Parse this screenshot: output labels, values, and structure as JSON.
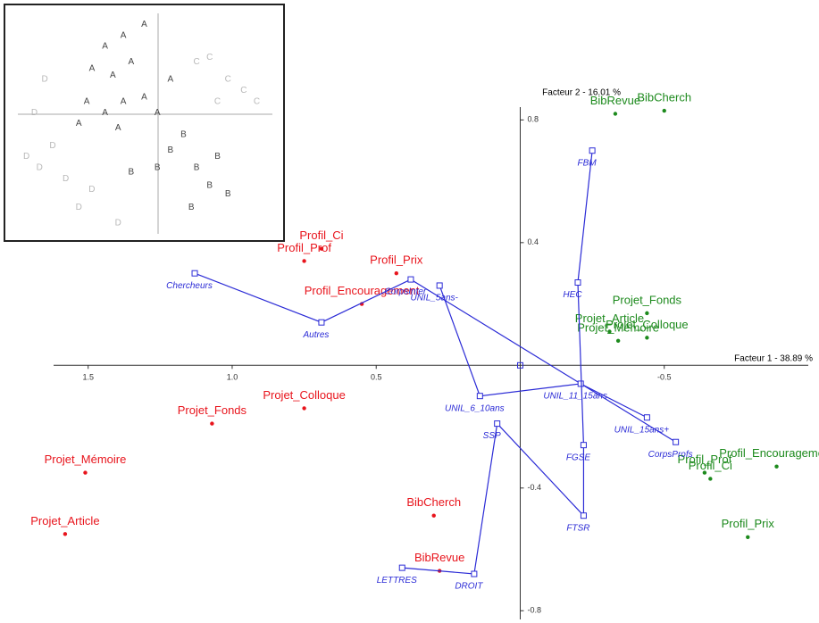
{
  "chart_data": [
    {
      "type": "scatter",
      "xlabel": "Facteur 1  -  38.89 %",
      "ylabel": "Facteur 2  -  16.01 %",
      "xlim": [
        1.62,
        -1.0
      ],
      "ylim": [
        -0.84,
        0.9
      ],
      "xticks": [
        1.5,
        {
          "value": 1,
          "label": "1.0"
        },
        0.5,
        -0.5
      ],
      "yticks": [
        0.8,
        0.4,
        -0.4,
        -0.8
      ],
      "series": [
        {
          "color": "#e8141c",
          "marker": "dot",
          "line": false,
          "labels": [
            "Profil_Ci",
            "Profil_Prof",
            "Profil_Prix",
            "Profil_Encouragement",
            "Projet_Colloque",
            "Projet_Fonds",
            "Projet_Mémoire",
            "Projet_Article",
            "BibCherch",
            "BibRevue"
          ],
          "x": [
            0.69,
            0.75,
            0.43,
            0.55,
            0.75,
            1.07,
            1.51,
            1.58,
            0.3,
            0.28
          ],
          "values": [
            0.38,
            0.34,
            0.3,
            0.2,
            -0.14,
            -0.19,
            -0.35,
            -0.55,
            -0.49,
            -0.67
          ]
        },
        {
          "color": "#1d8a1d",
          "marker": "dot",
          "line": false,
          "labels": [
            "BibRevue",
            "BibCherch",
            "Projet_Article",
            "Projet_Mémoire",
            "Projet_Fonds",
            "Projet_Colloque",
            "Profil_Encouragement",
            "Profil_Prof",
            "Profil_Ci",
            "Profil_Prix"
          ],
          "x": [
            -0.33,
            -0.5,
            -0.31,
            -0.34,
            -0.44,
            -0.44,
            -0.89,
            -0.64,
            -0.66,
            -0.79
          ],
          "values": [
            0.82,
            0.83,
            0.11,
            0.08,
            0.17,
            0.09,
            -0.33,
            -0.35,
            -0.37,
            -0.56
          ]
        },
        {
          "color": "#2b2bd6",
          "marker": "square",
          "line": true,
          "labels": [
            "Chercheurs",
            "Autres",
            "CorpsInter",
            "CorpsProfs"
          ],
          "x": [
            1.13,
            0.69,
            0.38,
            -0.54
          ],
          "values": [
            0.3,
            0.14,
            0.28,
            -0.25
          ]
        },
        {
          "color": "#2b2bd6",
          "marker": "square",
          "line": true,
          "labels": [
            "UNIL_5ans-",
            "UNIL_6_10ans",
            "UNIL_11_15ans",
            "UNIL_15ans+"
          ],
          "x": [
            0.28,
            0.14,
            -0.21,
            -0.44
          ],
          "values": [
            0.26,
            -0.1,
            -0.06,
            -0.17
          ]
        },
        {
          "color": "#2b2bd6",
          "marker": "square",
          "line": true,
          "labels": [
            "LETTRES",
            "DROIT",
            "SSP",
            "FTSR",
            "FGSE",
            "HEC",
            "FBM"
          ],
          "x": [
            0.41,
            0.16,
            0.08,
            -0.22,
            -0.22,
            -0.2,
            -0.25
          ],
          "values": [
            -0.66,
            -0.68,
            -0.19,
            -0.49,
            -0.26,
            0.27,
            0.7
          ]
        }
      ]
    },
    {
      "type": "scatter",
      "xlim": [
        0,
        1
      ],
      "ylim": [
        0,
        1
      ],
      "series": [
        {
          "color": "#444444",
          "labels": [
            "A",
            "A",
            "A",
            "A",
            "A",
            "A",
            "A",
            "A",
            "A",
            "A",
            "A",
            "A",
            "A",
            "A",
            "B",
            "B",
            "B",
            "B",
            "B",
            "B",
            "B",
            "B",
            "B"
          ],
          "x": [
            0.35,
            0.42,
            0.5,
            0.3,
            0.38,
            0.45,
            0.28,
            0.35,
            0.42,
            0.5,
            0.55,
            0.25,
            0.4,
            0.6,
            0.6,
            0.65,
            0.7,
            0.75,
            0.82,
            0.68,
            0.78,
            0.45,
            0.55
          ],
          "values": [
            0.85,
            0.9,
            0.95,
            0.75,
            0.72,
            0.78,
            0.6,
            0.55,
            0.6,
            0.62,
            0.55,
            0.5,
            0.48,
            0.7,
            0.38,
            0.45,
            0.3,
            0.22,
            0.18,
            0.12,
            0.35,
            0.28,
            0.3
          ]
        },
        {
          "color": "#b8b8b8",
          "labels": [
            "C",
            "C",
            "C",
            "C",
            "C",
            "C",
            "D",
            "D",
            "D",
            "D",
            "D",
            "D",
            "D",
            "D",
            "D"
          ],
          "x": [
            0.7,
            0.75,
            0.82,
            0.88,
            0.93,
            0.78,
            0.08,
            0.05,
            0.1,
            0.15,
            0.12,
            0.25,
            0.3,
            0.4,
            0.2
          ],
          "values": [
            0.78,
            0.8,
            0.7,
            0.65,
            0.6,
            0.6,
            0.55,
            0.35,
            0.3,
            0.4,
            0.7,
            0.12,
            0.2,
            0.05,
            0.25
          ]
        }
      ]
    }
  ]
}
